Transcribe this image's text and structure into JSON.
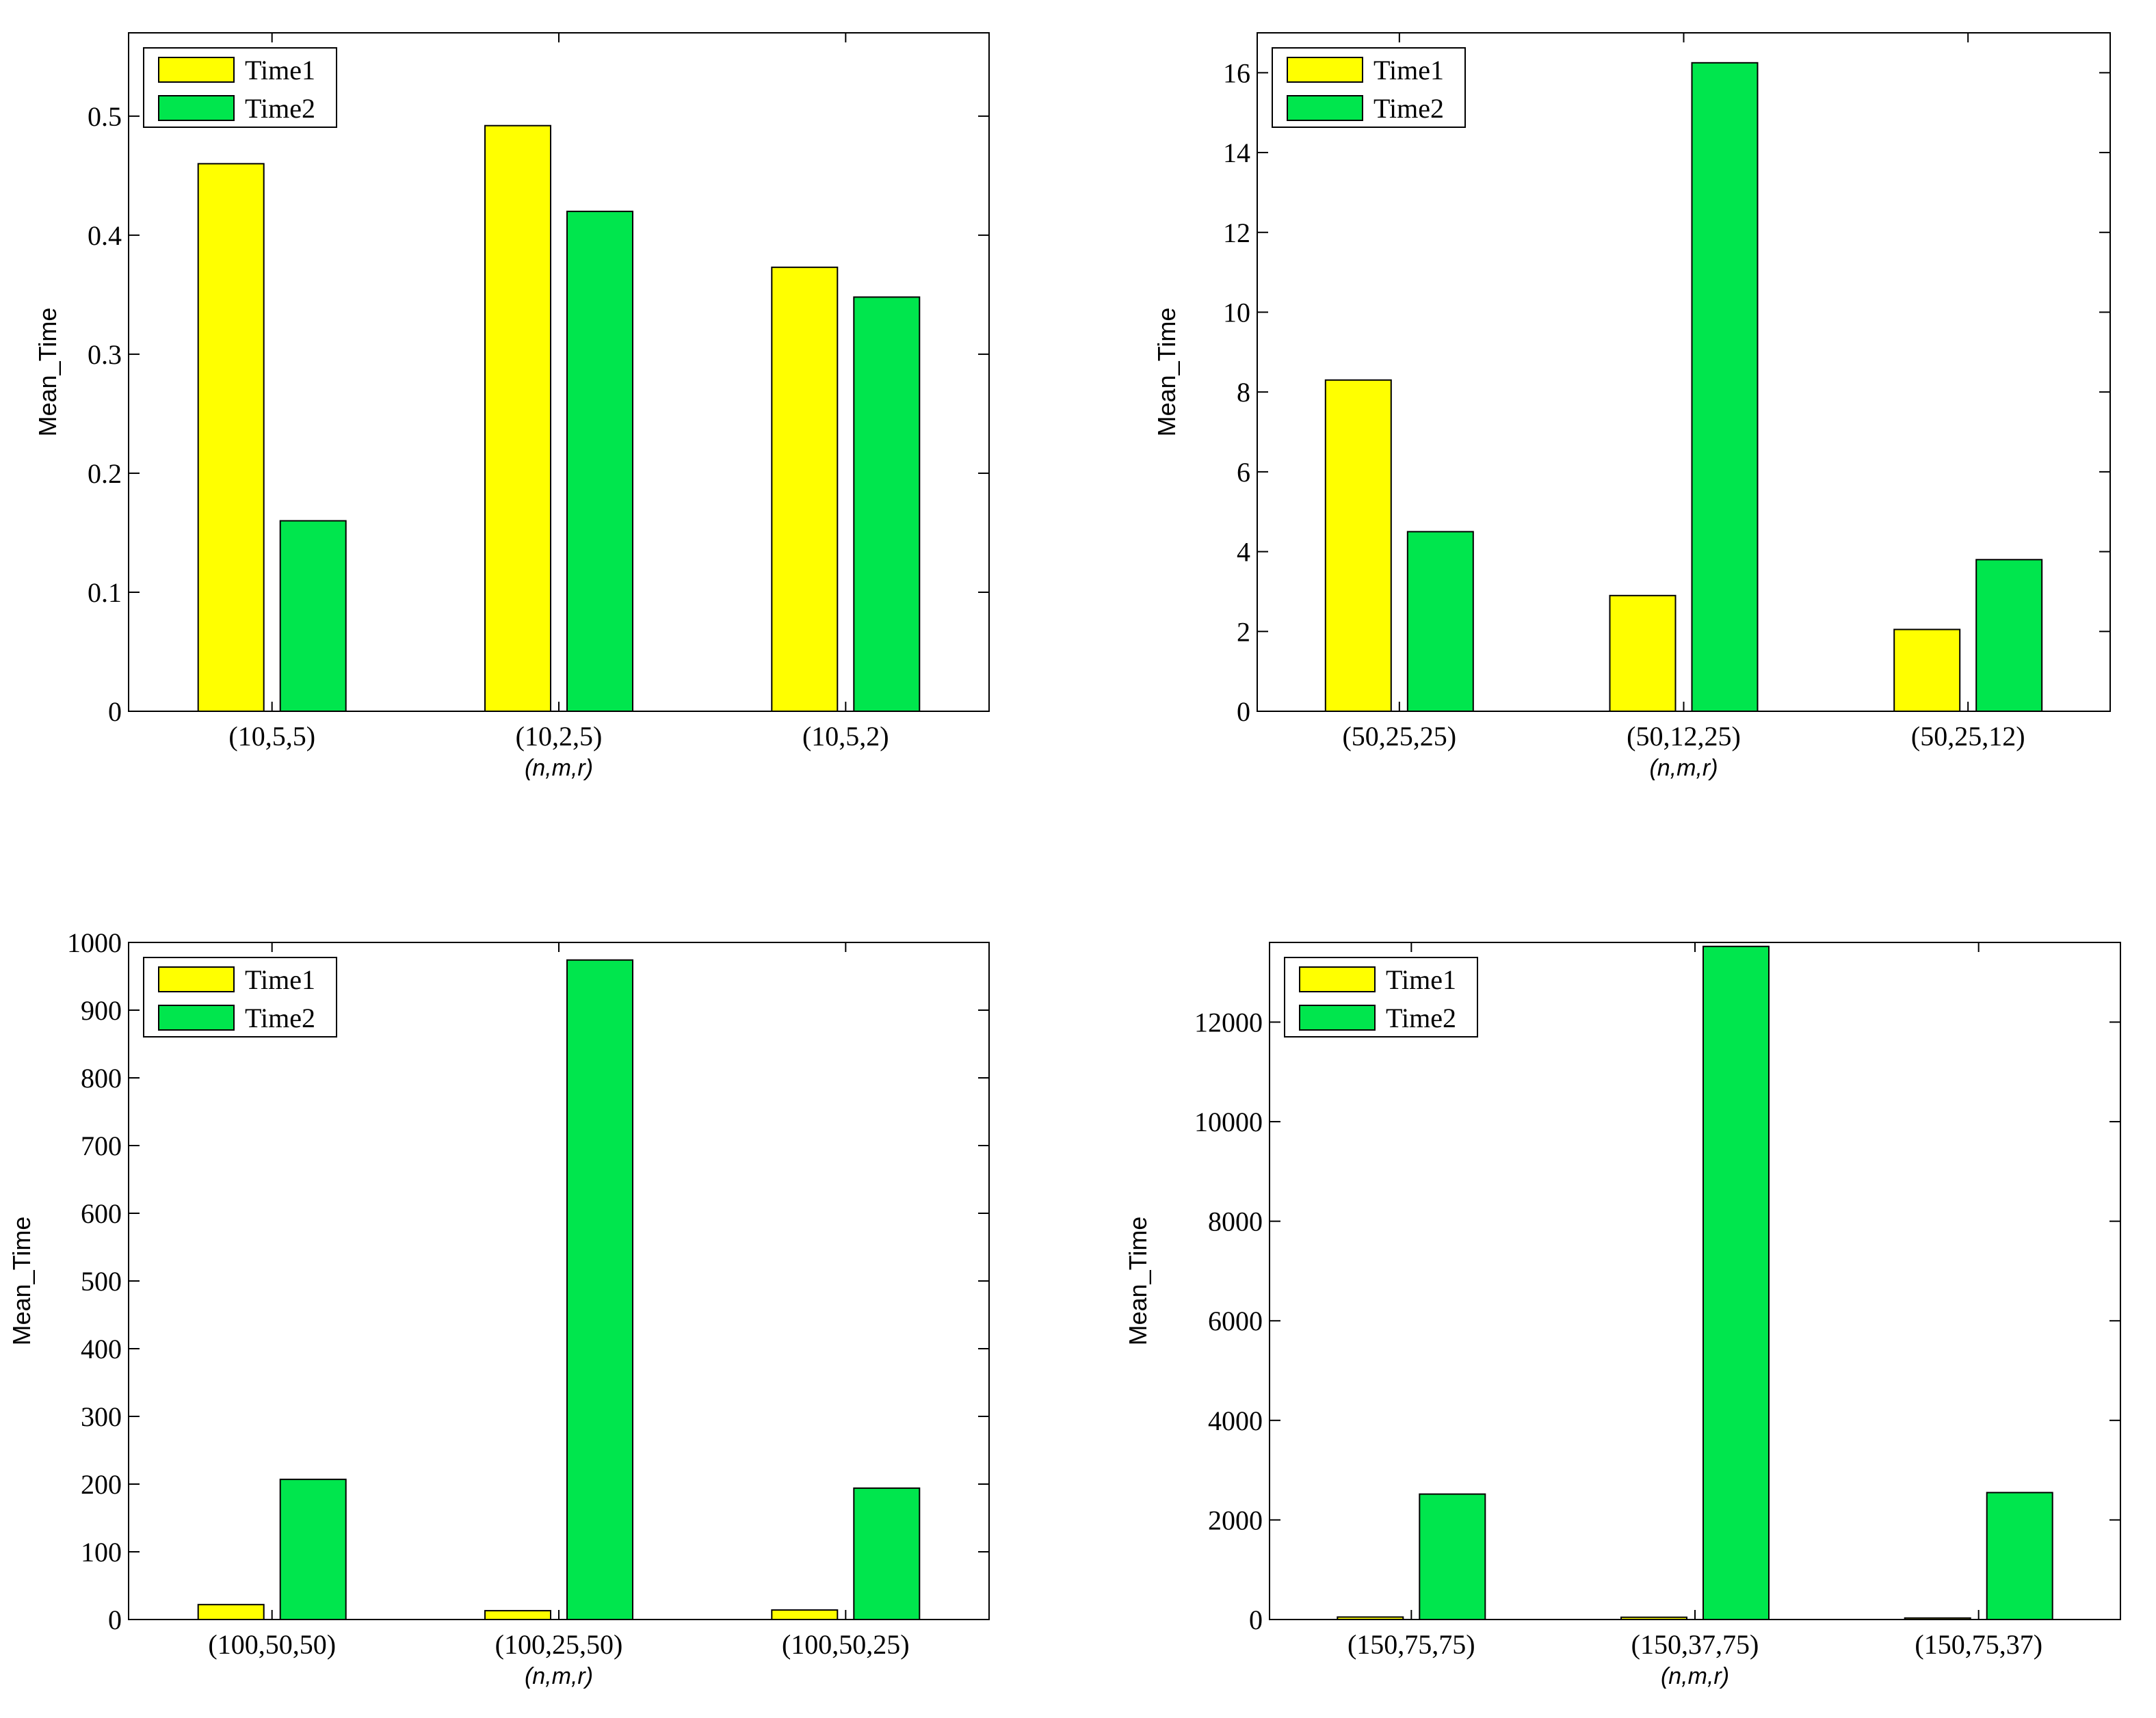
{
  "chart_data": [
    {
      "type": "bar",
      "title": "",
      "xlabel": "(n,m,r)",
      "ylabel": "Mean_Time",
      "categories": [
        "(10,5,5)",
        "(10,2,5)",
        "(10,5,2)"
      ],
      "series": [
        {
          "name": "Time1",
          "values": [
            0.46,
            0.492,
            0.373
          ]
        },
        {
          "name": "Time2",
          "values": [
            0.16,
            0.42,
            0.348
          ]
        }
      ],
      "ylim": [
        0,
        0.57
      ],
      "yticks": [
        0,
        0.1,
        0.2,
        0.3,
        0.4,
        0.5
      ],
      "ytick_labels": [
        "0",
        "0.1",
        "0.2",
        "0.3",
        "0.4",
        "0.5"
      ],
      "legend_position": "top-left",
      "grid": false
    },
    {
      "type": "bar",
      "title": "",
      "xlabel": "(n,m,r)",
      "ylabel": "Mean_Time",
      "categories": [
        "(50,25,25)",
        "(50,12,25)",
        "(50,25,12)"
      ],
      "series": [
        {
          "name": "Time1",
          "values": [
            8.3,
            2.9,
            2.05
          ]
        },
        {
          "name": "Time2",
          "values": [
            4.5,
            16.25,
            3.8
          ]
        }
      ],
      "ylim": [
        0,
        17
      ],
      "yticks": [
        0,
        2,
        4,
        6,
        8,
        10,
        12,
        14,
        16
      ],
      "ytick_labels": [
        "0",
        "2",
        "4",
        "6",
        "8",
        "10",
        "12",
        "14",
        "16"
      ],
      "legend_position": "top-left",
      "grid": false
    },
    {
      "type": "bar",
      "title": "",
      "xlabel": "(n,m,r)",
      "ylabel": "Mean_Time",
      "categories": [
        "(100,50,50)",
        "(100,25,50)",
        "(100,50,25)"
      ],
      "series": [
        {
          "name": "Time1",
          "values": [
            22,
            13,
            14
          ]
        },
        {
          "name": "Time2",
          "values": [
            207,
            974,
            194
          ]
        }
      ],
      "ylim": [
        0,
        1000
      ],
      "yticks": [
        0,
        100,
        200,
        300,
        400,
        500,
        600,
        700,
        800,
        900,
        1000
      ],
      "ytick_labels": [
        "0",
        "100",
        "200",
        "300",
        "400",
        "500",
        "600",
        "700",
        "800",
        "900",
        "1000"
      ],
      "legend_position": "top-left",
      "grid": false
    },
    {
      "type": "bar",
      "title": "",
      "xlabel": "(n,m,r)",
      "ylabel": "Mean_Time",
      "categories": [
        "(150,75,75)",
        "(150,37,75)",
        "(150,75,37)"
      ],
      "series": [
        {
          "name": "Time1",
          "values": [
            50,
            45,
            30
          ]
        },
        {
          "name": "Time2",
          "values": [
            2520,
            13520,
            2550
          ]
        }
      ],
      "ylim": [
        0,
        13600
      ],
      "yticks": [
        0,
        2000,
        4000,
        6000,
        8000,
        10000,
        12000
      ],
      "ytick_labels": [
        "0",
        "2000",
        "4000",
        "6000",
        "8000",
        "10000",
        "12000"
      ],
      "legend_position": "top-left",
      "grid": false
    }
  ],
  "colors": {
    "Time1": "#ffff00",
    "Time2": "#00e64d",
    "axis": "#000000"
  }
}
